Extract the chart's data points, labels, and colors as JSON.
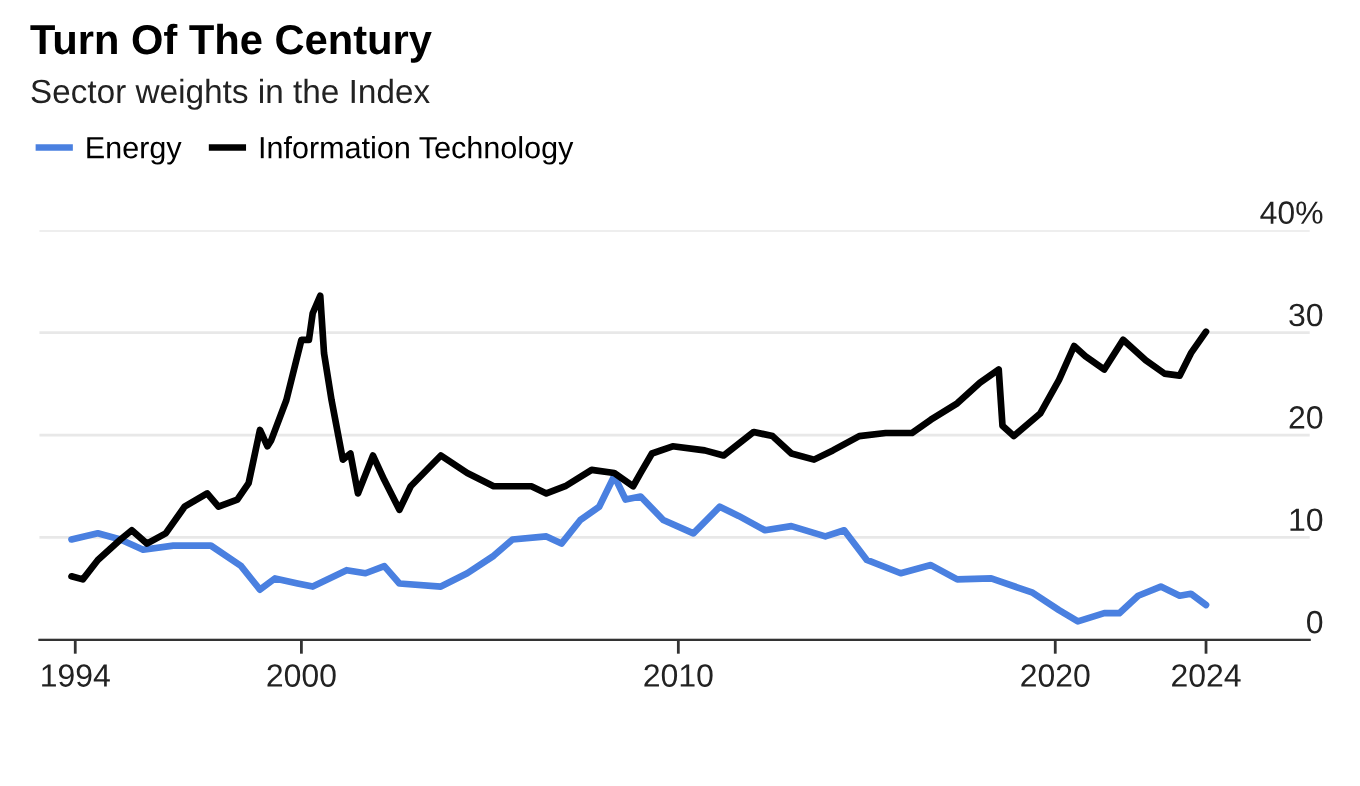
{
  "chart_data": {
    "type": "line",
    "title": "Turn Of The Century",
    "subtitle": "Sector weights in the Index",
    "series": [
      {
        "name": "Energy",
        "color": "#4a80e0",
        "x": [
          1993.9,
          1994.6,
          1995.2,
          1995.8,
          1996.6,
          1997.6,
          1998.4,
          1998.9,
          1999.3,
          1999.9,
          2000.3,
          2001.2,
          2001.7,
          2002.2,
          2002.6,
          2003.7,
          2004.4,
          2005.1,
          2005.6,
          2006.5,
          2006.9,
          2007.4,
          2007.9,
          2008.3,
          2008.6,
          2009.0,
          2009.6,
          2010.4,
          2011.1,
          2011.6,
          2012.3,
          2013.0,
          2013.9,
          2014.4,
          2015.0,
          2015.9,
          2016.7,
          2017.4,
          2018.3,
          2019.4,
          2020.1,
          2020.6,
          2021.3,
          2021.7,
          2022.2,
          2022.8,
          2023.3,
          2023.6,
          2024.0
        ],
        "values": [
          9.8,
          10.4,
          9.8,
          8.8,
          9.2,
          9.2,
          7.2,
          4.9,
          6,
          5.5,
          5.2,
          6.8,
          6.5,
          7.2,
          5.5,
          5.2,
          6.5,
          8.2,
          9.8,
          10.1,
          9.4,
          11.7,
          13,
          16,
          13.7,
          14,
          11.7,
          10.4,
          13,
          12.1,
          10.7,
          11.1,
          10.1,
          10.7,
          7.8,
          6.5,
          7.3,
          5.9,
          6,
          4.6,
          2.9,
          1.8,
          2.6,
          2.6,
          4.3,
          5.2,
          4.3,
          4.5,
          3.4
        ]
      },
      {
        "name": "Information Technology",
        "color": "#000000",
        "x": [
          1993.9,
          1994.2,
          1994.6,
          1995.2,
          1995.5,
          1995.9,
          1996.4,
          1996.9,
          1997.5,
          1997.8,
          1998.3,
          1998.6,
          1998.9,
          1999.1,
          1999.2,
          1999.6,
          2000.0,
          2000.2,
          2000.3,
          2000.5,
          2000.6,
          2000.8,
          2001.1,
          2001.3,
          2001.5,
          2001.9,
          2002.2,
          2002.6,
          2002.9,
          2003.7,
          2004.4,
          2005.1,
          2006.1,
          2006.5,
          2007.0,
          2007.7,
          2008.3,
          2008.8,
          2009.0,
          2009.3,
          2009.85,
          2010.7,
          2011.2,
          2012.0,
          2012.5,
          2013.0,
          2013.6,
          2014.1,
          2014.8,
          2015.5,
          2016.2,
          2016.7,
          2017.4,
          2018.0,
          2018.5,
          2018.6,
          2018.9,
          2019.6,
          2020.1,
          2020.5,
          2020.8,
          2021.3,
          2021.8,
          2022.4,
          2022.9,
          2023.3,
          2023.6,
          2024.0
        ],
        "values": [
          6.2,
          5.9,
          7.8,
          9.8,
          10.7,
          9.4,
          10.4,
          13,
          14.3,
          13,
          13.7,
          15.3,
          20.5,
          18.9,
          19.5,
          23.4,
          29.3,
          29.3,
          31.9,
          33.6,
          28,
          23.4,
          17.6,
          18.2,
          14.3,
          18,
          15.6,
          12.7,
          15,
          18,
          16.3,
          15,
          15,
          14.3,
          15,
          16.6,
          16.3,
          15,
          16.3,
          18.2,
          18.9,
          18.5,
          18,
          20.3,
          19.9,
          18.2,
          17.6,
          18.5,
          19.9,
          20.2,
          20.2,
          21.5,
          23.1,
          25.1,
          26.4,
          20.9,
          19.9,
          22.1,
          25.4,
          28.7,
          27.7,
          26.4,
          29.3,
          27.3,
          26,
          25.8,
          28,
          30.1
        ]
      }
    ],
    "xlim": [
      1993.05,
      2026.75
    ],
    "xticks": [
      1994,
      2000,
      2010,
      2020,
      2024
    ],
    "ylim": [
      0,
      40
    ],
    "yticks": [
      0,
      10,
      20,
      30,
      {
        "value": 40,
        "label": "40%"
      }
    ],
    "grid": "y",
    "legend": "top left",
    "marker": "none",
    "line_style": "solid"
  }
}
